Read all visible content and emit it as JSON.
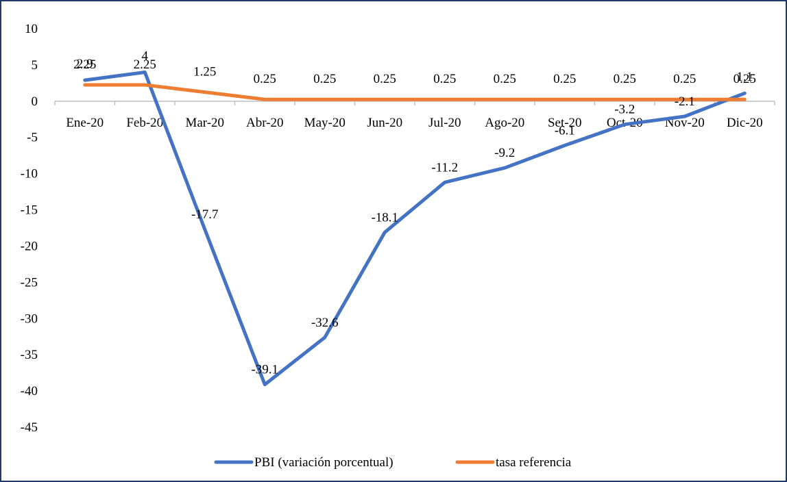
{
  "chart_data": {
    "type": "line",
    "categories": [
      "Ene-20",
      "Feb-20",
      "Mar-20",
      "Abr-20",
      "May-20",
      "Jun-20",
      "Jul-20",
      "Ago-20",
      "Set-20",
      "Oct-20",
      "Nov-20",
      "Dic-20"
    ],
    "ylim": [
      -45,
      10
    ],
    "yticks": [
      10,
      5,
      0,
      -5,
      -10,
      -15,
      -20,
      -25,
      -30,
      -35,
      -40,
      -45
    ],
    "grid": false,
    "legend_position": "bottom",
    "series": [
      {
        "name": "PBI (variación porcentual)",
        "color": "#4472c4",
        "values": [
          2.9,
          4,
          -17.7,
          -39.1,
          -32.6,
          -18.1,
          -11.2,
          -9.2,
          -6.1,
          -3.2,
          -2.1,
          1.1
        ],
        "labels": [
          "2.9",
          "4",
          "-17.7",
          "-39.1",
          "-32.6",
          "-18.1",
          "-11.2",
          "-9.2",
          "-6.1",
          "-3.2",
          "-2.1",
          "1.1"
        ]
      },
      {
        "name": "tasa referencia",
        "color": "#ed7d31",
        "values": [
          2.25,
          2.25,
          1.25,
          0.25,
          0.25,
          0.25,
          0.25,
          0.25,
          0.25,
          0.25,
          0.25,
          0.25
        ],
        "labels": [
          "2.25",
          "2.25",
          "1.25",
          "0.25",
          "0.25",
          "0.25",
          "0.25",
          "0.25",
          "0.25",
          "0.25",
          "0.25",
          "0.25"
        ]
      }
    ]
  }
}
